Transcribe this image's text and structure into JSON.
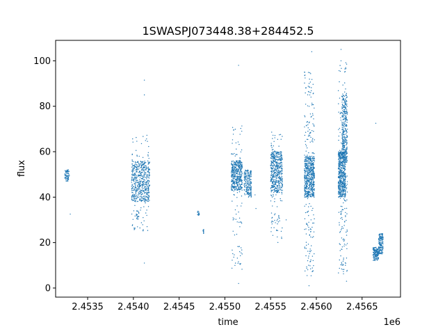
{
  "chart_data": {
    "type": "scatter",
    "title": "1SWASPJ073448.38+284452.5",
    "xlabel": "time",
    "ylabel": "flux",
    "x_offset_label": "1e6",
    "xlim": [
      2.45315,
      2.45692
    ],
    "ylim": [
      -4,
      109
    ],
    "x_ticks": [
      2.4535,
      2.454,
      2.4545,
      2.455,
      2.4555,
      2.456,
      2.4565
    ],
    "x_tick_labels": [
      "2.4535",
      "2.4540",
      "2.4545",
      "2.4550",
      "2.4555",
      "2.4560",
      "2.4565"
    ],
    "y_ticks": [
      0,
      20,
      40,
      60,
      80,
      100
    ],
    "y_tick_labels": [
      "0",
      "20",
      "40",
      "60",
      "80",
      "100"
    ],
    "marker_color": "#1f77b4",
    "grid": false,
    "clusters": [
      {
        "x": [
          2.45325,
          2.4533
        ],
        "y": [
          47,
          52
        ],
        "count": 70
      },
      {
        "x": [
          2.45398,
          2.45418
        ],
        "y": [
          38,
          56
        ],
        "count": 500
      },
      {
        "x": [
          2.45398,
          2.45418
        ],
        "y": [
          25,
          68
        ],
        "count": 80
      },
      {
        "x": [
          2.45403,
          2.45406
        ],
        "y": [
          30,
          34
        ],
        "count": 20
      },
      {
        "x": [
          2.4547,
          2.45472
        ],
        "y": [
          32,
          34
        ],
        "count": 15
      },
      {
        "x": [
          2.45476,
          2.45477
        ],
        "y": [
          24,
          26
        ],
        "count": 10
      },
      {
        "x": [
          2.45507,
          2.45519
        ],
        "y": [
          43,
          56
        ],
        "count": 400
      },
      {
        "x": [
          2.45507,
          2.45519
        ],
        "y": [
          8,
          72
        ],
        "count": 90
      },
      {
        "x": [
          2.45521,
          2.45529
        ],
        "y": [
          40,
          52
        ],
        "count": 200
      },
      {
        "x": [
          2.4555,
          2.45563
        ],
        "y": [
          42,
          60
        ],
        "count": 450
      },
      {
        "x": [
          2.4555,
          2.45563
        ],
        "y": [
          20,
          70
        ],
        "count": 100
      },
      {
        "x": [
          2.45587,
          2.45598
        ],
        "y": [
          40,
          58
        ],
        "count": 500
      },
      {
        "x": [
          2.45587,
          2.45598
        ],
        "y": [
          5,
          95
        ],
        "count": 200
      },
      {
        "x": [
          2.45624,
          2.45632
        ],
        "y": [
          40,
          60
        ],
        "count": 500
      },
      {
        "x": [
          2.45628,
          2.45634
        ],
        "y": [
          55,
          85
        ],
        "count": 300
      },
      {
        "x": [
          2.45624,
          2.45634
        ],
        "y": [
          5,
          100
        ],
        "count": 200
      },
      {
        "x": [
          2.45662,
          2.45668
        ],
        "y": [
          12,
          18
        ],
        "count": 150
      },
      {
        "x": [
          2.45668,
          2.45673
        ],
        "y": [
          15,
          24
        ],
        "count": 150
      }
    ],
    "outliers": [
      {
        "x": 2.45331,
        "y": 32.5
      },
      {
        "x": 2.45412,
        "y": 91.5
      },
      {
        "x": 2.45412,
        "y": 85
      },
      {
        "x": 2.45412,
        "y": 11
      },
      {
        "x": 2.45509,
        "y": 25
      },
      {
        "x": 2.45509,
        "y": 30
      },
      {
        "x": 2.45515,
        "y": 98
      },
      {
        "x": 2.45515,
        "y": 2
      },
      {
        "x": 2.45533,
        "y": 41
      },
      {
        "x": 2.45534,
        "y": 35
      },
      {
        "x": 2.45551,
        "y": 29
      },
      {
        "x": 2.45551,
        "y": 33
      },
      {
        "x": 2.45567,
        "y": 30
      },
      {
        "x": 2.45587,
        "y": 95
      },
      {
        "x": 2.45592,
        "y": 1
      },
      {
        "x": 2.45595,
        "y": 104
      },
      {
        "x": 2.45627,
        "y": 105
      },
      {
        "x": 2.45633,
        "y": 3
      },
      {
        "x": 2.45665,
        "y": 72.5
      }
    ]
  }
}
